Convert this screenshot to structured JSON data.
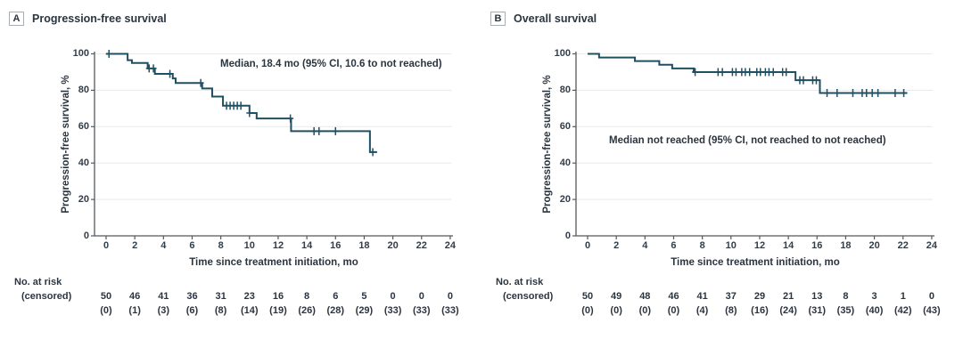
{
  "figure": {
    "background": "#ffffff",
    "text_color": "#2b3540",
    "axis_color": "#55595d",
    "grid_color": "#ebebeb"
  },
  "chart_data": [
    {
      "type": "line",
      "subtype": "kaplan-meier-step",
      "panel_label": "A",
      "title": "Progression-free survival",
      "xlabel": "Time since treatment initiation, mo",
      "ylabel": "Progression-free survival, %",
      "annotation": "Median, 18.4 mo (95% CI, 10.6 to not reached)",
      "xlim": [
        0,
        24
      ],
      "ylim": [
        0,
        100
      ],
      "xticks": [
        0,
        2,
        4,
        6,
        8,
        10,
        12,
        14,
        16,
        18,
        20,
        22,
        24
      ],
      "yticks": [
        0,
        20,
        40,
        60,
        80,
        100
      ],
      "grid": "horizontal",
      "legend": "none",
      "line_color": "#214f62",
      "steps": [
        [
          0,
          100
        ],
        [
          1.5,
          96.5
        ],
        [
          1.8,
          95
        ],
        [
          2.9,
          92
        ],
        [
          3.4,
          89
        ],
        [
          4.65,
          86.5
        ],
        [
          4.85,
          84
        ],
        [
          6.7,
          81
        ],
        [
          7.4,
          76.5
        ],
        [
          8.15,
          71.5
        ],
        [
          10.0,
          67.5
        ],
        [
          10.5,
          64.5
        ],
        [
          12.9,
          57.5
        ],
        [
          18.4,
          46
        ]
      ],
      "curve_end_month": 18.9,
      "censor_marks": [
        [
          0.2,
          100
        ],
        [
          3.0,
          92
        ],
        [
          3.3,
          92
        ],
        [
          4.45,
          89
        ],
        [
          6.6,
          84
        ],
        [
          8.4,
          71.5
        ],
        [
          8.65,
          71.5
        ],
        [
          8.9,
          71.5
        ],
        [
          9.15,
          71.5
        ],
        [
          9.4,
          71.5
        ],
        [
          10.0,
          67.5
        ],
        [
          12.85,
          64.5
        ],
        [
          14.5,
          57.5
        ],
        [
          14.85,
          57.5
        ],
        [
          16.0,
          57.5
        ],
        [
          18.6,
          46
        ]
      ],
      "risk_table": {
        "label_line1": "No. at risk",
        "label_line2": "(censored)",
        "at_risk": [
          "50",
          "46",
          "41",
          "36",
          "31",
          "23",
          "16",
          "8",
          "6",
          "5",
          "0",
          "0",
          "0"
        ],
        "censored": [
          "(0)",
          "(1)",
          "(3)",
          "(6)",
          "(8)",
          "(14)",
          "(19)",
          "(26)",
          "(28)",
          "(29)",
          "(33)",
          "(33)",
          "(33)"
        ]
      }
    },
    {
      "type": "line",
      "subtype": "kaplan-meier-step",
      "panel_label": "B",
      "title": "Overall survival",
      "xlabel": "Time since treatment initiation, mo",
      "ylabel": "Progression-free survival, %",
      "annotation": "Median not reached (95% CI, not reached to not reached)",
      "xlim": [
        0,
        24
      ],
      "ylim": [
        0,
        100
      ],
      "xticks": [
        0,
        2,
        4,
        6,
        8,
        10,
        12,
        14,
        16,
        18,
        20,
        22,
        24
      ],
      "yticks": [
        0,
        20,
        40,
        60,
        80,
        100
      ],
      "grid": "horizontal",
      "legend": "none",
      "line_color": "#214f62",
      "steps": [
        [
          0,
          100
        ],
        [
          0.8,
          98
        ],
        [
          3.3,
          96
        ],
        [
          5.0,
          94
        ],
        [
          5.9,
          92
        ],
        [
          7.4,
          90
        ],
        [
          14.5,
          85.5
        ],
        [
          16.2,
          78.5
        ]
      ],
      "curve_end_month": 22.3,
      "censor_marks": [
        [
          7.5,
          90
        ],
        [
          9.1,
          90
        ],
        [
          9.4,
          90
        ],
        [
          10.1,
          90
        ],
        [
          10.35,
          90
        ],
        [
          10.75,
          90
        ],
        [
          11.0,
          90
        ],
        [
          11.3,
          90
        ],
        [
          11.8,
          90
        ],
        [
          12.05,
          90
        ],
        [
          12.4,
          90
        ],
        [
          12.65,
          90
        ],
        [
          12.95,
          90
        ],
        [
          13.6,
          90
        ],
        [
          13.85,
          90
        ],
        [
          14.8,
          85.5
        ],
        [
          15.05,
          85.5
        ],
        [
          15.7,
          85.5
        ],
        [
          15.95,
          85.5
        ],
        [
          16.7,
          78.5
        ],
        [
          17.4,
          78.5
        ],
        [
          18.5,
          78.5
        ],
        [
          19.15,
          78.5
        ],
        [
          19.45,
          78.5
        ],
        [
          19.85,
          78.5
        ],
        [
          20.25,
          78.5
        ],
        [
          21.45,
          78.5
        ],
        [
          22.05,
          78.5
        ]
      ],
      "risk_table": {
        "label_line1": "No. at risk",
        "label_line2": "(censored)",
        "at_risk": [
          "50",
          "49",
          "48",
          "46",
          "41",
          "37",
          "29",
          "21",
          "13",
          "8",
          "3",
          "1",
          "0"
        ],
        "censored": [
          "(0)",
          "(0)",
          "(0)",
          "(0)",
          "(4)",
          "(8)",
          "(16)",
          "(24)",
          "(31)",
          "(35)",
          "(40)",
          "(42)",
          "(43)"
        ]
      }
    }
  ]
}
